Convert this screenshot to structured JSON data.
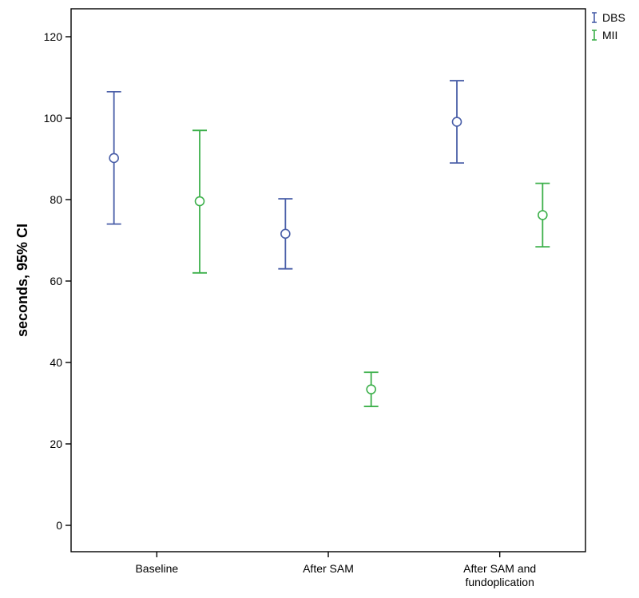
{
  "chart_data": {
    "type": "errorbar",
    "categories": [
      "Baseline",
      "After SAM",
      "After SAM and\nfundoplication"
    ],
    "series": [
      {
        "name": "DBS",
        "color": "#4a5fa8",
        "mean": [
          90.2,
          71.6,
          99.1
        ],
        "lower": [
          74.0,
          63.0,
          89.0
        ],
        "upper": [
          106.5,
          80.2,
          109.2
        ]
      },
      {
        "name": "MII",
        "color": "#3db04b",
        "mean": [
          79.6,
          33.4,
          76.2
        ],
        "lower": [
          62.0,
          29.2,
          68.4
        ],
        "upper": [
          97.0,
          37.6,
          84.0
        ]
      }
    ],
    "ylabel": "seconds, 95% CI",
    "ylim": [
      0,
      125
    ],
    "yticks": [
      0,
      20,
      40,
      60,
      80,
      100,
      120
    ],
    "legend_position": "top-right",
    "grid": false
  }
}
